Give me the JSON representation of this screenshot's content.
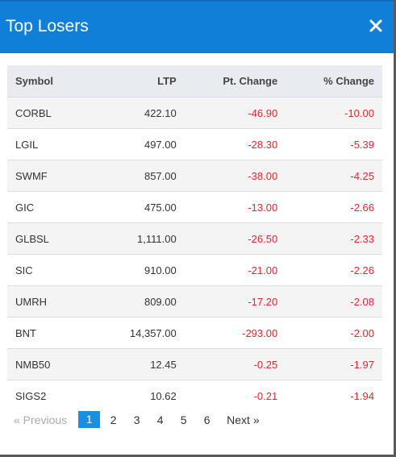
{
  "modal": {
    "title": "Top Losers",
    "close_icon": "close-icon"
  },
  "table": {
    "headers": {
      "symbol": "Symbol",
      "ltp": "LTP",
      "pt_change": "Pt. Change",
      "pct_change": "% Change"
    },
    "rows": [
      {
        "symbol": "CORBL",
        "ltp": "422.10",
        "pt_change": "-46.90",
        "pct_change": "-10.00"
      },
      {
        "symbol": "LGIL",
        "ltp": "497.00",
        "pt_change": "-28.30",
        "pct_change": "-5.39"
      },
      {
        "symbol": "SWMF",
        "ltp": "857.00",
        "pt_change": "-38.00",
        "pct_change": "-4.25"
      },
      {
        "symbol": "GIC",
        "ltp": "475.00",
        "pt_change": "-13.00",
        "pct_change": "-2.66"
      },
      {
        "symbol": "GLBSL",
        "ltp": "1,111.00",
        "pt_change": "-26.50",
        "pct_change": "-2.33"
      },
      {
        "symbol": "SIC",
        "ltp": "910.00",
        "pt_change": "-21.00",
        "pct_change": "-2.26"
      },
      {
        "symbol": "UMRH",
        "ltp": "809.00",
        "pt_change": "-17.20",
        "pct_change": "-2.08"
      },
      {
        "symbol": "BNT",
        "ltp": "14,357.00",
        "pt_change": "-293.00",
        "pct_change": "-2.00"
      },
      {
        "symbol": "NMB50",
        "ltp": "12.45",
        "pt_change": "-0.25",
        "pct_change": "-1.97"
      },
      {
        "symbol": "SIGS2",
        "ltp": "10.62",
        "pt_change": "-0.21",
        "pct_change": "-1.94"
      }
    ]
  },
  "pagination": {
    "previous": "«   Previous",
    "pages": [
      "1",
      "2",
      "3",
      "4",
      "5",
      "6"
    ],
    "current": "1",
    "next": "Next   »"
  },
  "colors": {
    "header": "#0f7fd8",
    "negative": "#e0262f",
    "active_page": "#1a8ee0"
  }
}
